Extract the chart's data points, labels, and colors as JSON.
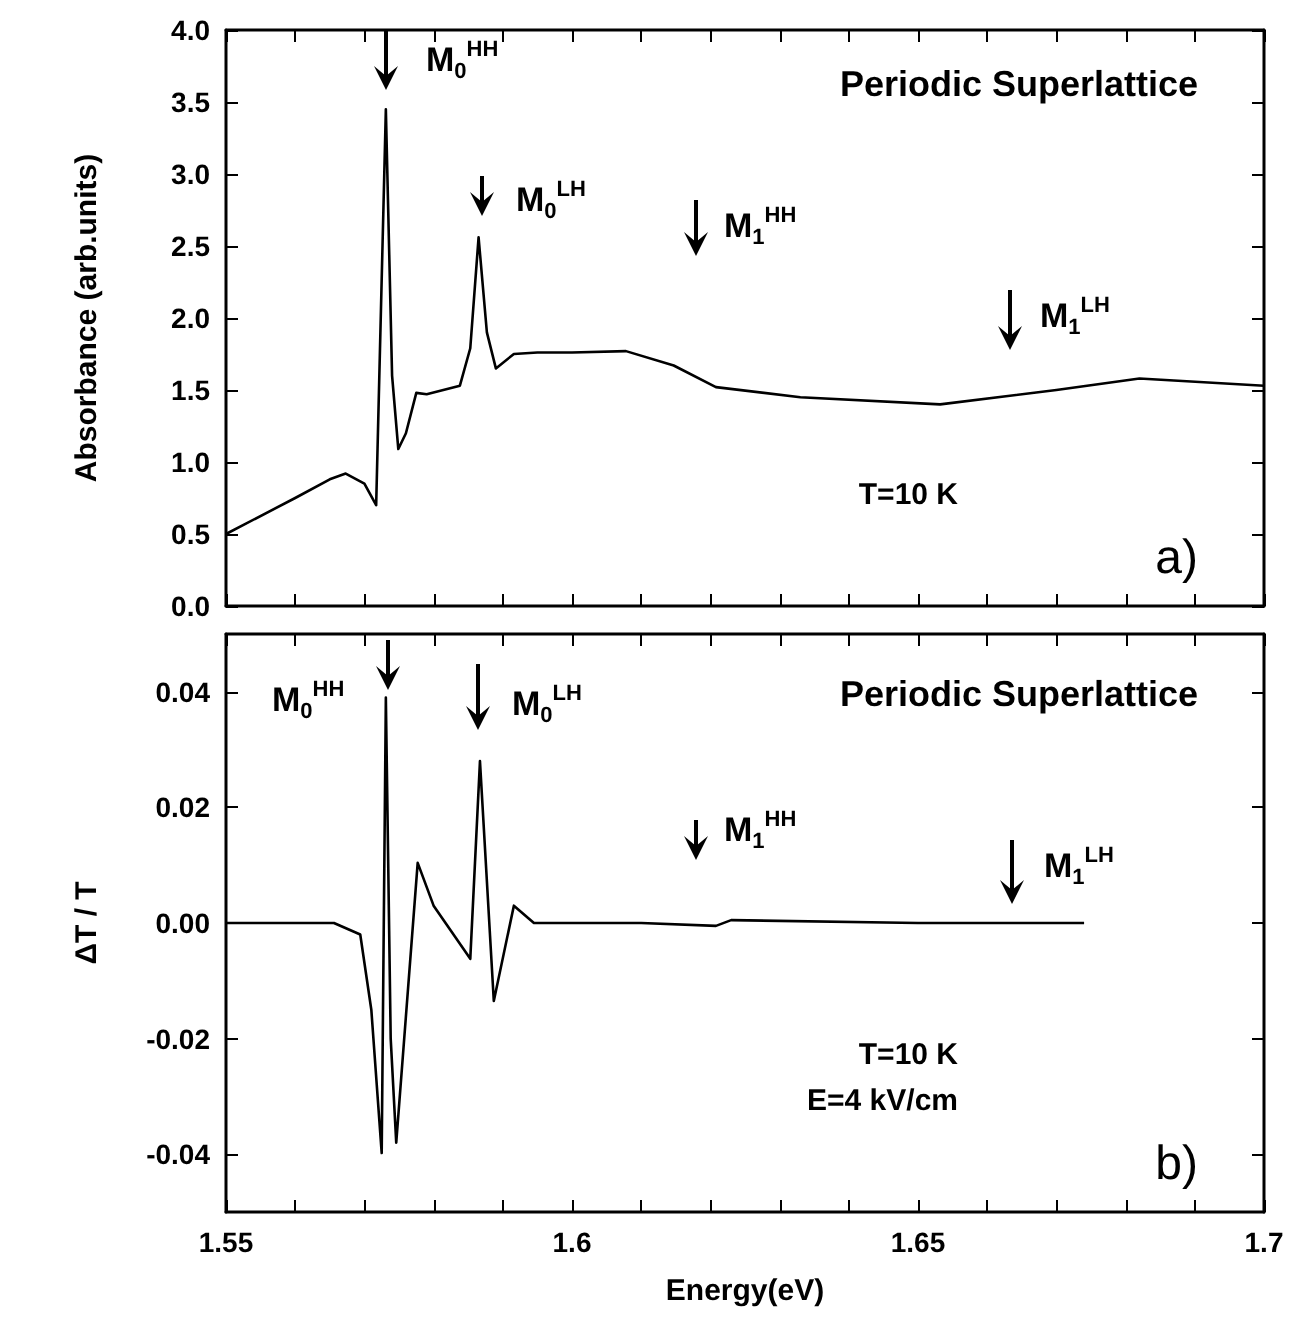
{
  "chart_data": [
    {
      "type": "line",
      "title": "Periodic Superlattice",
      "ylabel": "Absorbance (arb.units)",
      "tick_labels": "y",
      "annotations": [
        "M$_{0}$$^{HH}$",
        "M$_{0}$$^{LH}$",
        "M$_{1}$$^{HH}$",
        "M$_{1}$$^{LH}$",
        "T=10 K",
        "a)"
      ],
      "x": [
        1.55,
        1.56,
        1.565,
        1.5673,
        1.57,
        1.5717,
        1.5731,
        1.574,
        1.5749,
        1.576,
        1.5775,
        1.579,
        1.5838,
        1.5853,
        1.5865,
        1.5877,
        1.589,
        1.5916,
        1.595,
        1.6,
        1.6078,
        1.6147,
        1.6208,
        1.633,
        1.6532,
        1.67,
        1.682,
        1.7
      ],
      "series": [
        {
          "color": "#000000",
          "values": [
            0.5,
            0.75,
            0.88,
            0.92,
            0.85,
            0.7,
            3.45,
            1.6,
            1.09,
            1.2,
            1.48,
            1.47,
            1.53,
            1.79,
            2.56,
            1.9,
            1.65,
            1.75,
            1.76,
            1.76,
            1.77,
            1.67,
            1.52,
            1.45,
            1.4,
            1.5,
            1.58,
            1.53
          ]
        }
      ],
      "xlim": [
        1.55,
        1.7
      ],
      "ylim": [
        0,
        4
      ],
      "xticks": [
        {
          "value": 1.55,
          "label": null
        },
        {
          "value": 1.56,
          "label": null
        },
        {
          "value": 1.57,
          "label": null
        },
        {
          "value": 1.58,
          "label": null
        },
        {
          "value": 1.59,
          "label": null
        },
        {
          "value": 1.6,
          "label": null
        },
        {
          "value": 1.61,
          "label": null
        },
        {
          "value": 1.62,
          "label": null
        },
        {
          "value": 1.63,
          "label": null
        },
        {
          "value": 1.64,
          "label": null
        },
        {
          "value": 1.65,
          "label": null
        },
        {
          "value": 1.66,
          "label": null
        },
        {
          "value": 1.67,
          "label": null
        },
        {
          "value": 1.68,
          "label": null
        },
        {
          "value": 1.69,
          "label": null
        },
        {
          "value": 1.7,
          "label": null
        }
      ],
      "yticks": [
        {
          "value": 0,
          "label": "0.0"
        },
        0.5,
        {
          "value": 1,
          "label": "1.0"
        },
        1.5,
        {
          "value": 2,
          "label": "2.0"
        },
        2.5,
        {
          "value": 3,
          "label": "3.0"
        },
        3.5,
        {
          "value": 4,
          "label": "4.0"
        }
      ]
    },
    {
      "type": "line",
      "title": "Periodic Superlattice",
      "xlabel": "Energy(eV)",
      "ylabel": "ΔT / T",
      "annotations": [
        "M$_{0}$$^{HH}$",
        "M$_{0}$$^{LH}$",
        "M$_{1}$$^{HH}$",
        "M$_{1}$$^{LH}$",
        "T=10 K",
        "E=4 kV/cm",
        "b)"
      ],
      "x": [
        1.55,
        1.5656,
        1.5694,
        1.571,
        1.5725,
        1.5731,
        1.5738,
        1.5746,
        1.5777,
        1.58,
        1.5853,
        1.5867,
        1.5887,
        1.5916,
        1.5945,
        1.61,
        1.6208,
        1.623,
        1.65,
        1.674
      ],
      "series": [
        {
          "color": "#000000",
          "values": [
            0,
            0,
            -0.002,
            -0.015,
            -0.0398,
            0.039,
            -0.02,
            -0.038,
            0.0104,
            0.003,
            -0.0062,
            0.028,
            -0.0135,
            0.003,
            0,
            0,
            -0.0005,
            0.0005,
            0,
            0
          ]
        }
      ],
      "xlim": [
        1.55,
        1.7
      ],
      "ylim": [
        -0.05,
        0.05
      ],
      "xticks": [
        1.55,
        {
          "value": 1.56,
          "label": null
        },
        {
          "value": 1.57,
          "label": null
        },
        {
          "value": 1.58,
          "label": null
        },
        {
          "value": 1.59,
          "label": null
        },
        1.6,
        {
          "value": 1.61,
          "label": null
        },
        {
          "value": 1.62,
          "label": null
        },
        {
          "value": 1.63,
          "label": null
        },
        {
          "value": 1.64,
          "label": null
        },
        1.65,
        {
          "value": 1.66,
          "label": null
        },
        {
          "value": 1.67,
          "label": null
        },
        {
          "value": 1.68,
          "label": null
        },
        {
          "value": 1.69,
          "label": null
        },
        1.7
      ],
      "yticks": [
        {
          "value": -0.04,
          "label": "-0.04"
        },
        {
          "value": -0.02,
          "label": "-0.02"
        },
        {
          "value": 0,
          "label": "0.00"
        },
        {
          "value": 0.02,
          "label": "0.02"
        },
        {
          "value": 0.04,
          "label": "0.04"
        }
      ]
    }
  ]
}
